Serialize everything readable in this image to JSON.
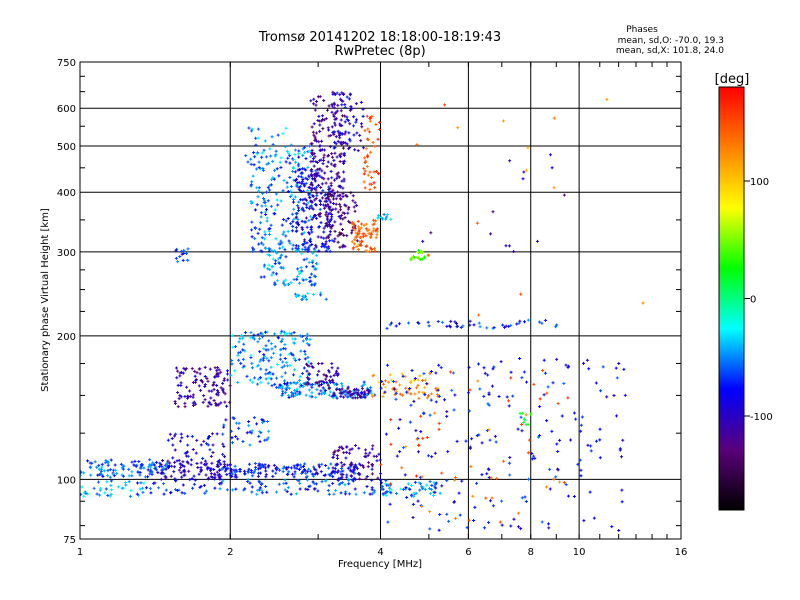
{
  "chart_data": {
    "type": "scatter",
    "title": "Tromsø 20141202 18:18:00-18:19:43",
    "subtitle": "RwPretec (8p)",
    "xlabel": "Frequency [MHz]",
    "ylabel": "Stationary phase Virtual Height [km]",
    "x_scale": "log",
    "y_scale": "log",
    "xlim": [
      1,
      16
    ],
    "ylim": [
      75,
      750
    ],
    "x_ticks": [
      1,
      2,
      4,
      6,
      8,
      10,
      16
    ],
    "y_ticks": [
      75,
      100,
      200,
      300,
      400,
      500,
      600,
      750
    ],
    "x_gridlines": [
      2,
      4,
      6,
      8,
      10
    ],
    "y_gridlines": [
      100,
      200,
      300,
      400,
      500,
      600
    ],
    "grid": true,
    "phases_info": {
      "heading": "Phases",
      "line1": "mean, sd,O: -70.0, 19.3",
      "line2": "mean, sd,X: 101.8, 24.0"
    },
    "colorbar": {
      "label": "[deg]",
      "range": [
        -180,
        180
      ],
      "ticks": [
        100,
        0,
        -100
      ],
      "colors": [
        "#000000",
        "#5a007a",
        "#0000ff",
        "#00ffff",
        "#00ff00",
        "#ffff00",
        "#ff7f00",
        "#ff0000"
      ]
    },
    "series": [
      {
        "f": [
          1.0,
          1.5
        ],
        "h": [
          101,
          110
        ],
        "phase": -60,
        "n": 110
      },
      {
        "f": [
          1.0,
          1.35
        ],
        "h": [
          92,
          100
        ],
        "phase": -40,
        "n": 35
      },
      {
        "f": [
          1.45,
          1.95
        ],
        "h": [
          100,
          110
        ],
        "phase": -100,
        "n": 90
      },
      {
        "f": [
          1.9,
          3.7
        ],
        "h": [
          101,
          108
        ],
        "phase": -75,
        "n": 170
      },
      {
        "f": [
          3.2,
          4.0
        ],
        "h": [
          100,
          118
        ],
        "phase": -110,
        "n": 70
      },
      {
        "f": [
          1.3,
          2.1
        ],
        "h": [
          93,
          100
        ],
        "phase": -70,
        "n": 40
      },
      {
        "f": [
          2.1,
          4.2
        ],
        "h": [
          93,
          100
        ],
        "phase": -60,
        "n": 90
      },
      {
        "f": [
          4.0,
          5.3
        ],
        "h": [
          92,
          99
        ],
        "phase": -45,
        "n": 45
      },
      {
        "f": [
          1.55,
          2.0
        ],
        "h": [
          142,
          172
        ],
        "phase": -110,
        "n": 110
      },
      {
        "f": [
          1.5,
          1.95
        ],
        "h": [
          110,
          125
        ],
        "phase": -90,
        "n": 40
      },
      {
        "f": [
          1.9,
          2.4
        ],
        "h": [
          118,
          135
        ],
        "phase": -65,
        "n": 40
      },
      {
        "f": [
          2.0,
          2.9
        ],
        "h": [
          155,
          205
        ],
        "phase": -50,
        "n": 170
      },
      {
        "f": [
          2.5,
          3.9
        ],
        "h": [
          148,
          160
        ],
        "phase": -55,
        "n": 120
      },
      {
        "f": [
          2.8,
          3.3
        ],
        "h": [
          155,
          175
        ],
        "phase": -110,
        "n": 50
      },
      {
        "f": [
          3.2,
          3.8
        ],
        "h": [
          148,
          155
        ],
        "phase": -115,
        "n": 40
      },
      {
        "f": [
          3.8,
          5.3
        ],
        "h": [
          148,
          168
        ],
        "phase": 120,
        "n": 55
      },
      {
        "f": [
          2.2,
          2.9
        ],
        "h": [
          300,
          490
        ],
        "phase": -55,
        "n": 190
      },
      {
        "f": [
          2.7,
          3.2
        ],
        "h": [
          300,
          450
        ],
        "phase": -85,
        "n": 170
      },
      {
        "f": [
          2.9,
          3.4
        ],
        "h": [
          350,
          650
        ],
        "phase": -115,
        "n": 200
      },
      {
        "f": [
          3.2,
          3.7
        ],
        "h": [
          480,
          650
        ],
        "phase": -90,
        "n": 70
      },
      {
        "f": [
          3.1,
          3.6
        ],
        "h": [
          305,
          400
        ],
        "phase": -130,
        "n": 80
      },
      {
        "f": [
          2.3,
          3.0
        ],
        "h": [
          255,
          305
        ],
        "phase": -50,
        "n": 90
      },
      {
        "f": [
          2.1,
          2.9
        ],
        "h": [
          450,
          550
        ],
        "phase": -45,
        "n": 40
      },
      {
        "f": [
          3.5,
          3.95
        ],
        "h": [
          300,
          350
        ],
        "phase": 140,
        "n": 70
      },
      {
        "f": [
          3.7,
          4.0
        ],
        "h": [
          400,
          600
        ],
        "phase": 150,
        "n": 40
      },
      {
        "f": [
          1.55,
          1.65
        ],
        "h": [
          285,
          305
        ],
        "phase": -70,
        "n": 14
      },
      {
        "f": [
          2.7,
          3.2
        ],
        "h": [
          238,
          246
        ],
        "phase": -45,
        "n": 18
      },
      {
        "f": [
          3.9,
          4.2
        ],
        "h": [
          350,
          360
        ],
        "phase": -30,
        "n": 10
      },
      {
        "f": [
          4.6,
          5.0
        ],
        "h": [
          288,
          302
        ],
        "phase": 45,
        "n": 22
      },
      {
        "f": [
          4.0,
          9.3
        ],
        "h": [
          207,
          216
        ],
        "phase": -70,
        "n": 45
      },
      {
        "f": [
          4.0,
          12.5
        ],
        "h": [
          78,
          180
        ],
        "phase": -80,
        "n": 220
      },
      {
        "f": [
          4.0,
          9.5
        ],
        "h": [
          80,
          170
        ],
        "phase": 140,
        "n": 55
      },
      {
        "f": [
          7.6,
          8.0
        ],
        "h": [
          130,
          140
        ],
        "phase": 30,
        "n": 8
      },
      {
        "f": [
          4.5,
          15
        ],
        "h": [
          220,
          660
        ],
        "phase": 130,
        "n": 14
      },
      {
        "f": [
          4.5,
          9.5
        ],
        "h": [
          300,
          480
        ],
        "phase": -110,
        "n": 14
      }
    ]
  }
}
